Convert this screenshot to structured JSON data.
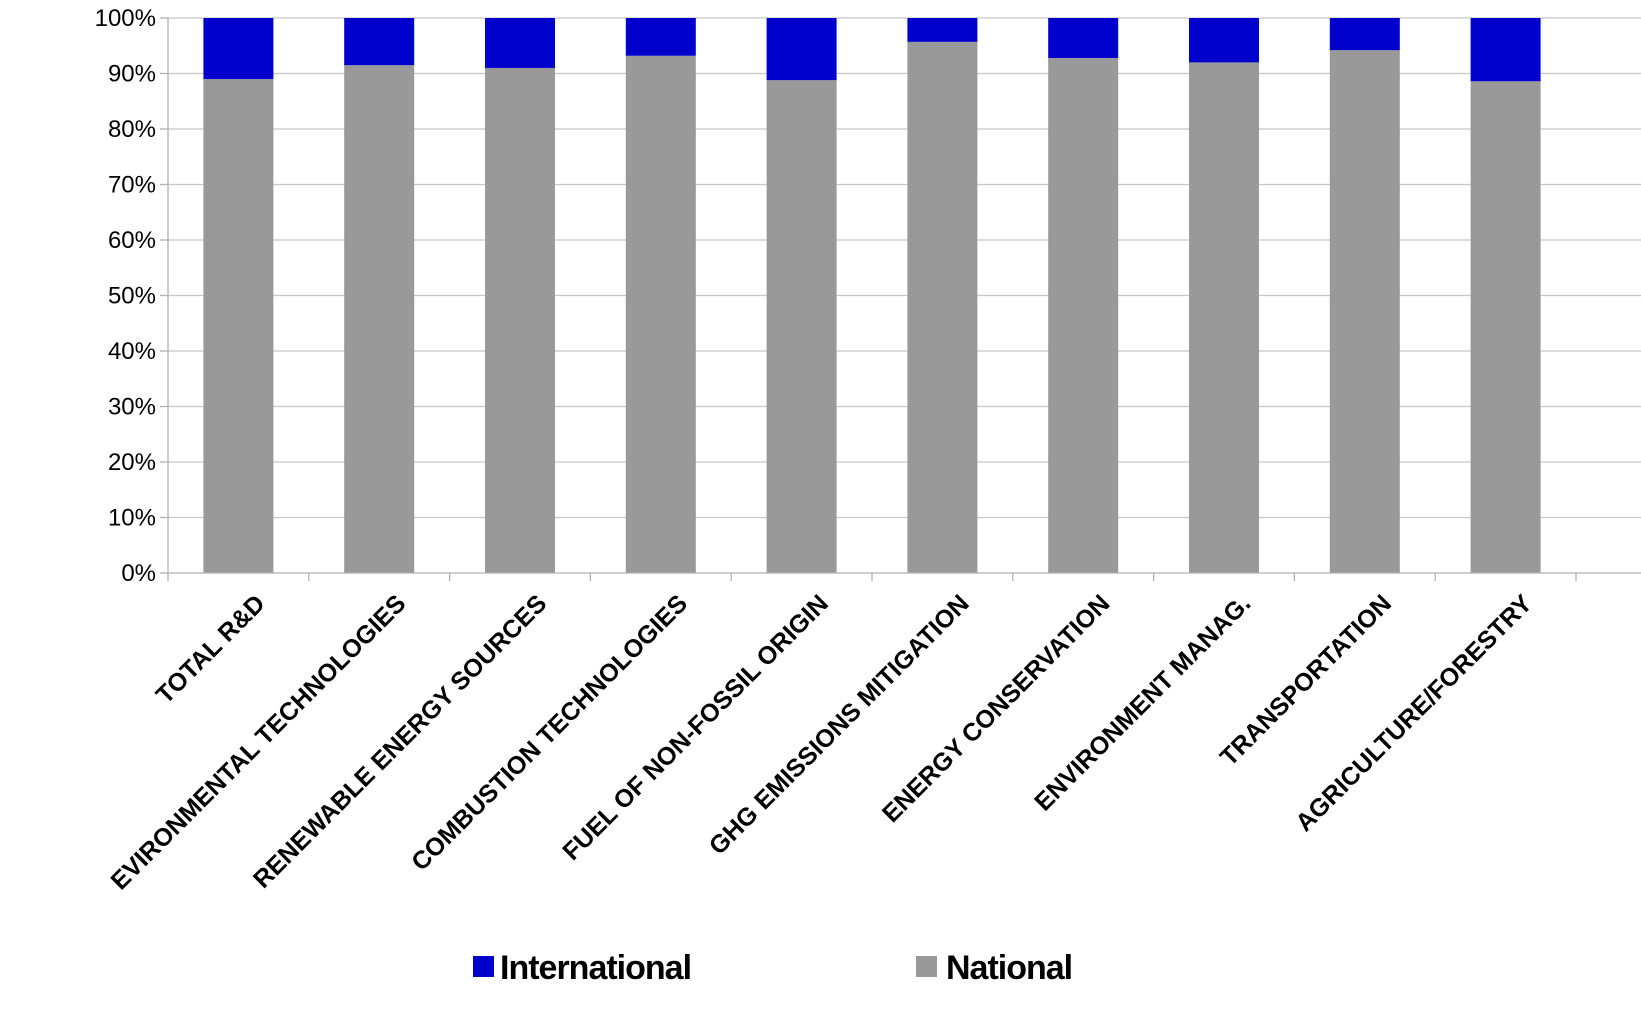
{
  "chart_data": {
    "type": "bar",
    "stacked": true,
    "percent_stacked": true,
    "categories": [
      "TOTAL R&D",
      "EVIRONMENTAL TECHNOLOGIES",
      "RENEWABLE ENERGY SOURCES",
      "COMBUSTION TECHNOLOGIES",
      "FUEL OF NON-FOSSIL ORIGIN",
      "GHG EMISSIONS MITIGATION",
      "ENERGY CONSERVATION",
      "ENVIRONMENT MANAG.",
      "TRANSPORTATION",
      "AGRICULTURE/FORESTRY"
    ],
    "series": [
      {
        "name": "National",
        "color": "#999999",
        "values": [
          89,
          91.5,
          91,
          93.2,
          88.8,
          95.7,
          92.8,
          92,
          94.2,
          88.6
        ]
      },
      {
        "name": "International",
        "color": "#0000cc",
        "values": [
          11,
          8.5,
          9,
          6.8,
          11.2,
          4.3,
          7.2,
          8,
          5.8,
          11.4
        ]
      }
    ],
    "ylim": [
      0,
      100
    ],
    "yticks": [
      "0%",
      "10%",
      "20%",
      "30%",
      "40%",
      "50%",
      "60%",
      "70%",
      "80%",
      "90%",
      "100%"
    ],
    "grid": true,
    "legend": {
      "position": "bottom",
      "items": [
        {
          "label": "International",
          "color": "#0000cc"
        },
        {
          "label": "National",
          "color": "#999999"
        }
      ]
    }
  }
}
